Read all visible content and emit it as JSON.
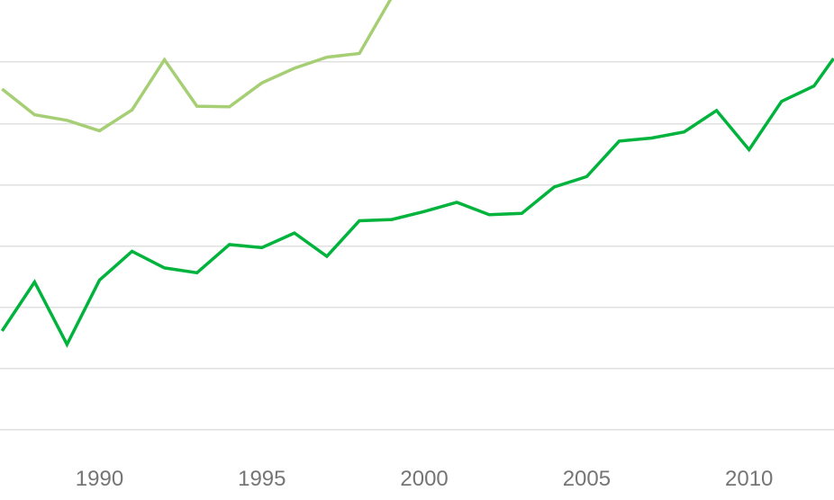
{
  "chart_data": {
    "type": "line",
    "title": "",
    "xlabel": "",
    "ylabel": "",
    "xlim": [
      1986.9,
      2012.6
    ],
    "ylim": [
      0,
      7
    ],
    "grid": true,
    "x_ticks": [
      "1990",
      "1995",
      "2000",
      "2005",
      "2010"
    ],
    "y_gridlines": [
      0,
      1,
      2,
      3,
      4,
      5,
      6
    ],
    "series": [
      {
        "color": "#a6cf75",
        "x": [
          1987,
          1988,
          1989,
          1990,
          1991,
          1992,
          1993,
          1994,
          1995,
          1996,
          1997,
          1998,
          1999
        ],
        "values": [
          5.55,
          5.13,
          5.04,
          4.87,
          5.21,
          6.03,
          5.27,
          5.26,
          5.65,
          5.89,
          6.07,
          6.13,
          7.05
        ]
      },
      {
        "color": "#00b33c",
        "x": [
          1987,
          1988,
          1989,
          1990,
          1991,
          1992,
          1993,
          1994,
          1995,
          1996,
          1997,
          1998,
          1999,
          2000,
          2001,
          2002,
          2003,
          2004,
          2005,
          2006,
          2007,
          2008,
          2009,
          2010,
          2011,
          2012,
          2012.6
        ],
        "values": [
          1.6,
          2.4,
          1.38,
          2.43,
          2.9,
          2.63,
          2.55,
          3.01,
          2.96,
          3.2,
          2.82,
          3.4,
          3.42,
          3.55,
          3.7,
          3.5,
          3.52,
          3.95,
          4.12,
          4.7,
          4.75,
          4.85,
          5.2,
          4.56,
          5.35,
          5.6,
          6.05
        ]
      }
    ]
  }
}
